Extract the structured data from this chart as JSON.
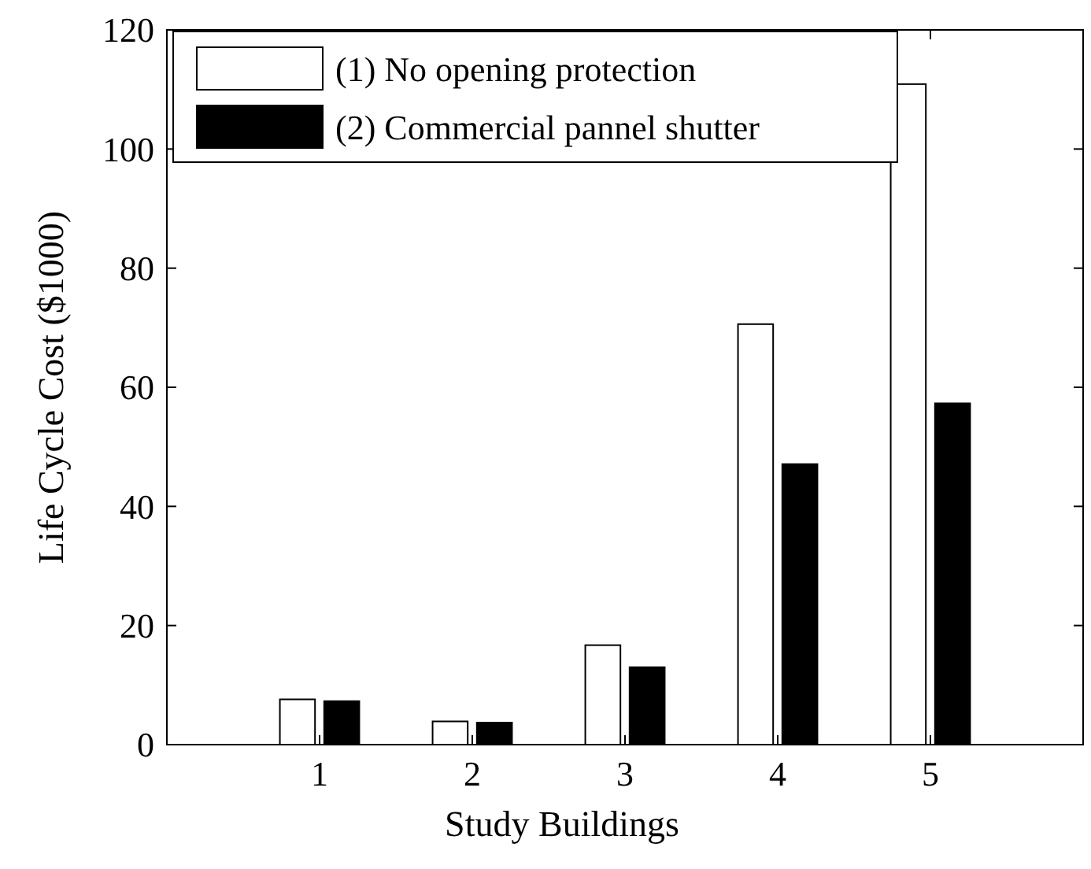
{
  "chart_data": {
    "type": "bar",
    "xlabel": "Study Buildings",
    "ylabel": "Life Cycle Cost ($1000)",
    "x": [
      1,
      2,
      3,
      4,
      5
    ],
    "xlim": [
      0,
      6
    ],
    "xticks": [
      1,
      2,
      3,
      4,
      5
    ],
    "ylim": [
      0,
      120
    ],
    "yticks": [
      0,
      20,
      40,
      60,
      80,
      100,
      120
    ],
    "legend": "top left",
    "grid": false,
    "series": [
      {
        "name": "(1) No opening protection",
        "color": "#ffffff",
        "values": [
          7.6,
          3.9,
          16.7,
          70.6,
          110.9
        ]
      },
      {
        "name": "(2) Commercial pannel shutter",
        "color": "#000000",
        "values": [
          7.3,
          3.7,
          13.0,
          47.1,
          57.3
        ]
      }
    ]
  }
}
